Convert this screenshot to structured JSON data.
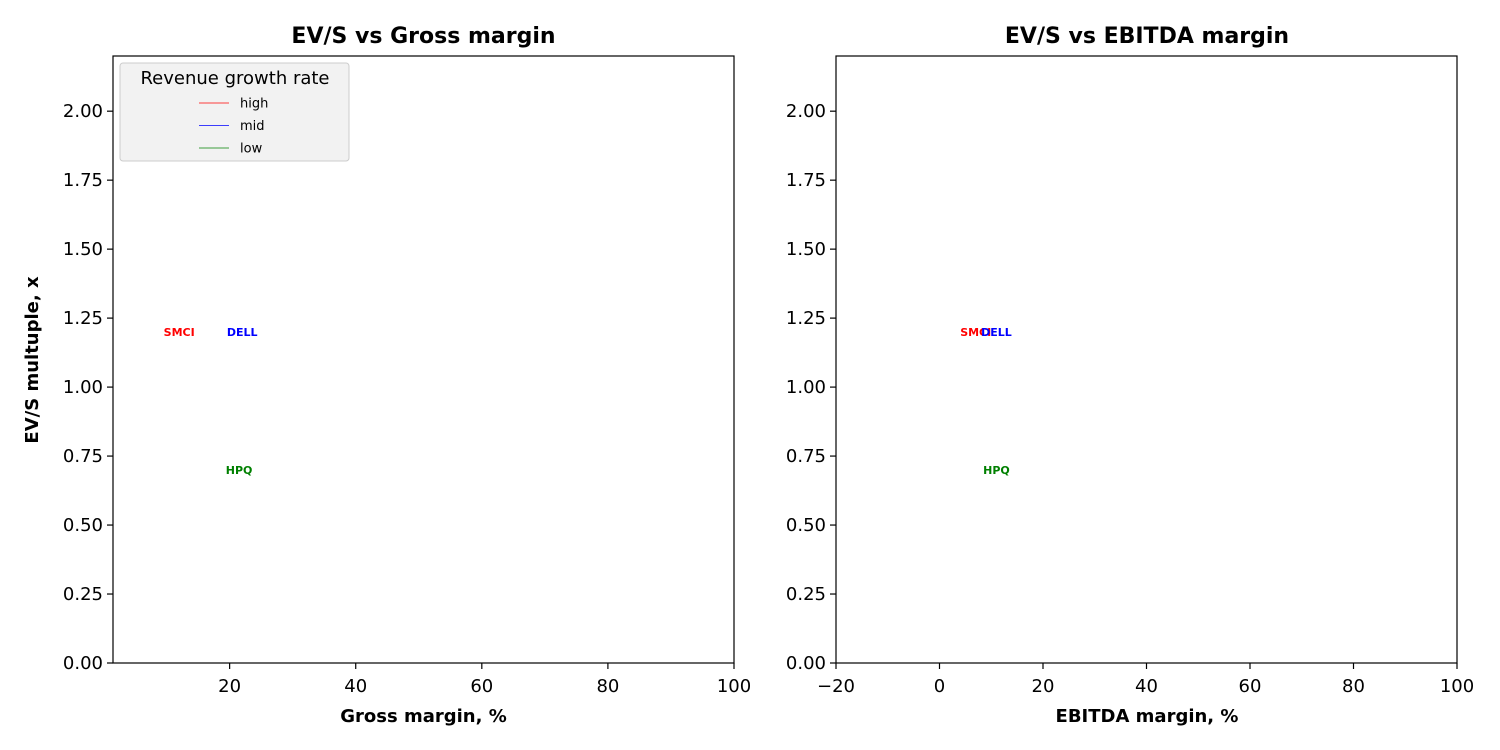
{
  "chart_data": [
    {
      "type": "scatter",
      "title": "EV/S vs Gross margin",
      "xlabel": "Gross margin, %",
      "ylabel": "EV/S multuple, x",
      "xlim": [
        1.5,
        100
      ],
      "ylim": [
        0,
        2.2
      ],
      "xticks": [
        "20",
        "40",
        "60",
        "80",
        "100"
      ],
      "yticks": [
        "0.00",
        "0.25",
        "0.50",
        "0.75",
        "1.00",
        "1.25",
        "1.50",
        "1.75",
        "2.00"
      ],
      "grid": false,
      "legend": {
        "title": "Revenue growth rate",
        "placement": "upper-left",
        "entries": [
          {
            "label": "high",
            "color": "#ff0000"
          },
          {
            "label": "mid",
            "color": "#0000ff"
          },
          {
            "label": "low",
            "color": "#008000"
          }
        ]
      },
      "points": [
        {
          "label": "SMCI",
          "x": 12,
          "y": 1.2,
          "color": "#ff0000"
        },
        {
          "label": "DELL",
          "x": 22,
          "y": 1.2,
          "color": "#0000ff"
        },
        {
          "label": "HPQ",
          "x": 21.5,
          "y": 0.7,
          "color": "#008000"
        }
      ]
    },
    {
      "type": "scatter",
      "title": "EV/S vs EBITDA margin",
      "xlabel": "EBITDA margin, %",
      "ylabel": "",
      "xlim": [
        -20,
        100
      ],
      "ylim": [
        0,
        2.2
      ],
      "xticks": [
        "−20",
        "0",
        "20",
        "40",
        "60",
        "80",
        "100"
      ],
      "yticks": [
        "0.00",
        "0.25",
        "0.50",
        "0.75",
        "1.00",
        "1.25",
        "1.50",
        "1.75",
        "2.00"
      ],
      "grid": false,
      "points": [
        {
          "label": "SMCI",
          "x": 7,
          "y": 1.2,
          "color": "#ff0000"
        },
        {
          "label": "DELL",
          "x": 11,
          "y": 1.2,
          "color": "#0000ff"
        },
        {
          "label": "HPQ",
          "x": 11,
          "y": 0.7,
          "color": "#008000"
        }
      ]
    }
  ]
}
